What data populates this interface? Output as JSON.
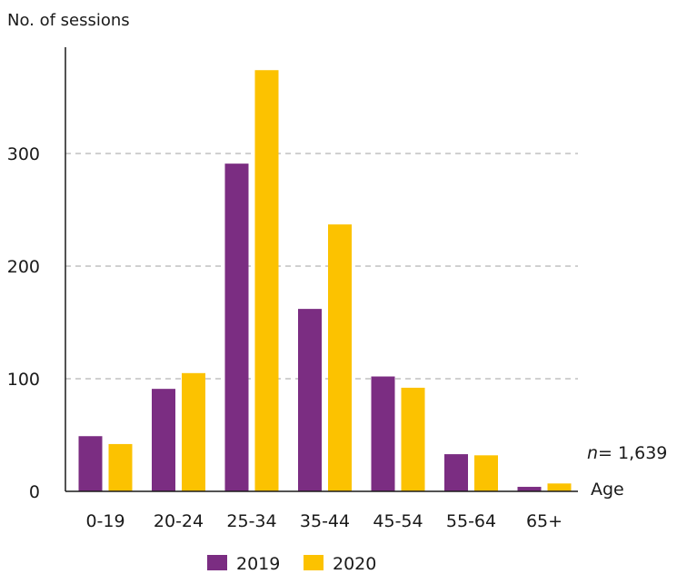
{
  "chart_data": {
    "type": "bar",
    "ylabel": "No. of sessions",
    "xlabel": "Age",
    "note_prefix": "n",
    "note_value": "= 1,639",
    "categories": [
      "0-19",
      "20-24",
      "25-34",
      "35-44",
      "45-54",
      "55-64",
      "65+"
    ],
    "series": [
      {
        "name": "2019",
        "color": "#7b2d82",
        "values": [
          49,
          91,
          291,
          162,
          102,
          33,
          4
        ]
      },
      {
        "name": "2020",
        "color": "#fcc200",
        "values": [
          42,
          105,
          374,
          237,
          92,
          32,
          7
        ]
      }
    ],
    "ylim": [
      0,
      400
    ],
    "yticks": [
      0,
      100,
      200,
      300
    ],
    "grid": true,
    "gridlines_at": [
      100,
      200,
      300
    ],
    "legend_position": "bottom-center"
  }
}
